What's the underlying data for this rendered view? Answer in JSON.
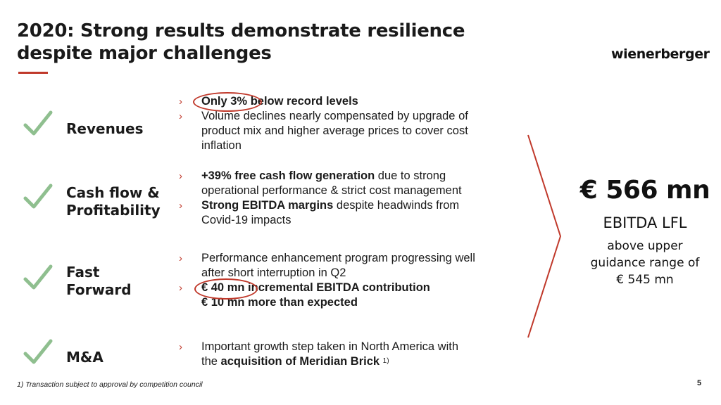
{
  "title": {
    "line1": "2020: Strong results demonstrate resilience",
    "line2": "despite major challenges"
  },
  "logo_text": "wienerberger",
  "colors": {
    "accent": "#c0392b",
    "check": "#8fbf8f",
    "text": "#1a1a1a"
  },
  "rows": [
    {
      "label_lines": [
        "Revenues"
      ],
      "icon": "check-icon",
      "bullets": [
        {
          "highlight": "Only 3%",
          "bold_rest": " below record levels"
        },
        {
          "lines": [
            "Volume declines nearly compensated by upgrade of",
            "product mix and higher average prices to cover cost",
            "inflation"
          ]
        }
      ]
    },
    {
      "label_lines": [
        "Cash flow &",
        "Profitability"
      ],
      "icon": "check-icon",
      "bullets": [
        {
          "bold": "+39% free cash flow generation",
          "text": " due to strong",
          "line2": "operational performance & strict cost management"
        },
        {
          "bold": "Strong EBITDA margins",
          "text": " despite headwinds from",
          "line2": "Covid-19 impacts"
        }
      ]
    },
    {
      "label_lines": [
        "Fast",
        "Forward"
      ],
      "icon": "check-icon",
      "bullets": [
        {
          "lines": [
            "Performance enhancement program progressing well",
            "after short interruption in Q2"
          ]
        },
        {
          "highlight": "€ 40 mn",
          "bold_rest": " incremental EBITDA contribution",
          "bold_line2": "€ 10 mn more than expected"
        }
      ]
    },
    {
      "label_lines": [
        "M&A"
      ],
      "icon": "check-icon",
      "bullets": [
        {
          "line1": "Important growth step taken in North America with",
          "prefix": "the ",
          "bold": "acquisition of Meridian Brick",
          "sup": "1)"
        }
      ]
    }
  ],
  "arrow_glyph": "›",
  "summary": {
    "value": "€ 566 mn",
    "metric": "EBITDA LFL",
    "note_lines": [
      "above upper",
      "guidance range of",
      "€ 545 mn"
    ]
  },
  "footnote": "1) Transaction subject to approval by competition council",
  "page_number": "5"
}
